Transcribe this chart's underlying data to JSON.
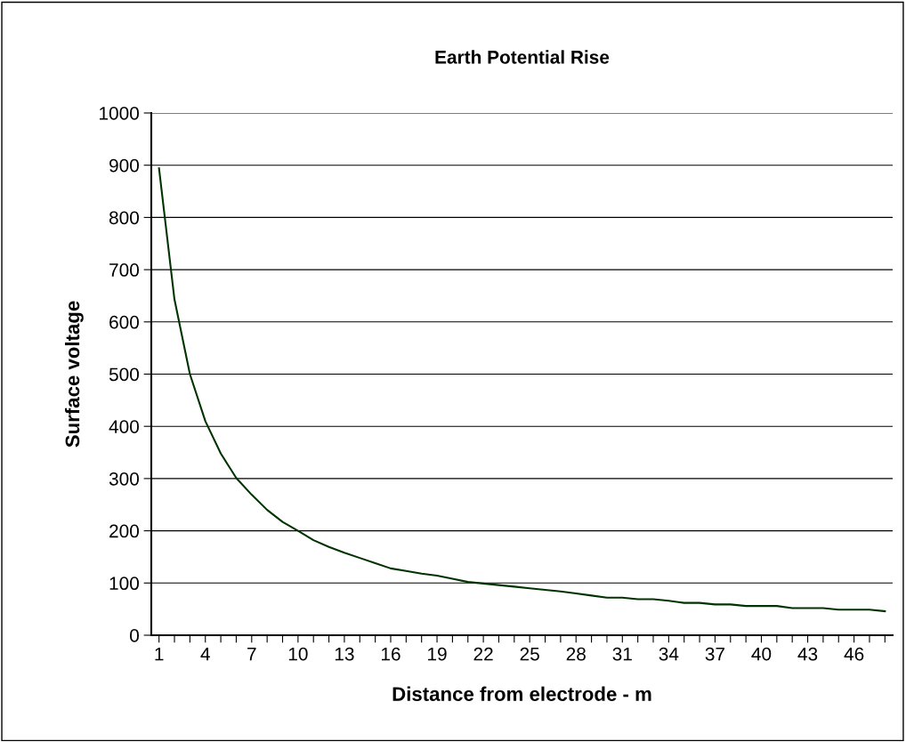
{
  "chart_data": {
    "type": "line",
    "title": "Earth Potential Rise",
    "xlabel": "Distance from electrode - m",
    "ylabel": "Surface voltage",
    "categories": [
      "1",
      null,
      null,
      "4",
      null,
      null,
      "7",
      null,
      null,
      "10",
      null,
      null,
      "13",
      null,
      null,
      "16",
      null,
      null,
      "19",
      null,
      null,
      "22",
      null,
      null,
      "25",
      null,
      null,
      "28",
      null,
      null,
      "31",
      null,
      null,
      "34",
      null,
      null,
      "37",
      null,
      null,
      "40",
      null,
      null,
      "43",
      null,
      null,
      "46",
      null,
      null
    ],
    "series": [
      {
        "color": "#003300",
        "values": [
          894,
          643,
          500,
          410,
          348,
          301,
          269,
          240,
          217,
          200,
          182,
          169,
          158,
          148,
          138,
          128,
          123,
          118,
          114,
          108,
          102,
          99,
          96,
          93,
          90,
          87,
          84,
          80,
          76,
          72,
          72,
          69,
          69,
          66,
          62,
          62,
          59,
          59,
          56,
          56,
          56,
          52,
          52,
          52,
          49,
          49,
          49,
          46
        ]
      }
    ],
    "ylim": [
      0,
      1000
    ],
    "yticks": [
      0,
      100,
      200,
      300,
      400,
      500,
      600,
      700,
      800,
      900,
      1000
    ],
    "grid": "y",
    "legend": false,
    "marker": "none",
    "line_style": "solid"
  }
}
